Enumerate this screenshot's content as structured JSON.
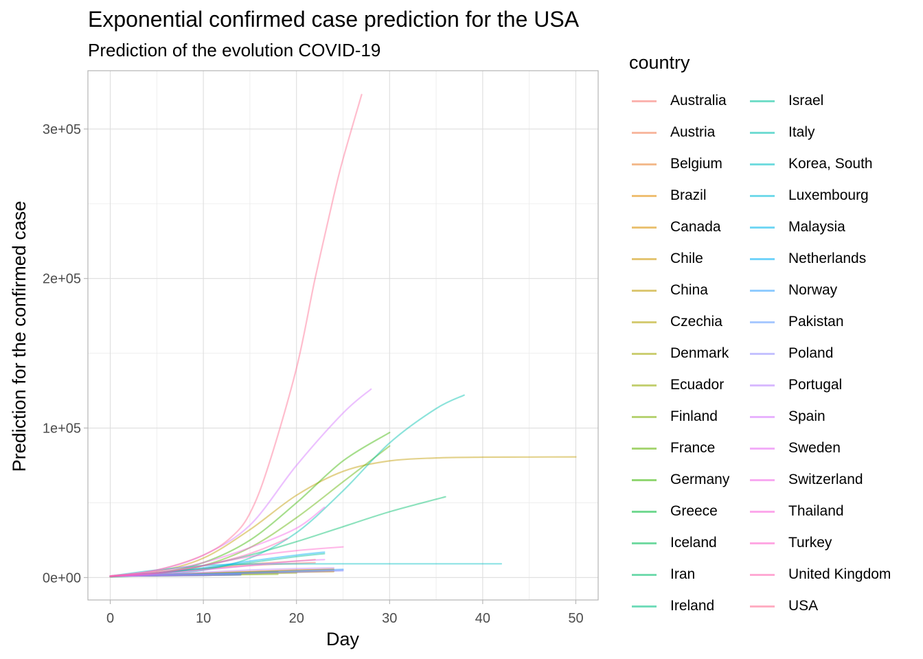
{
  "chart_data": {
    "type": "line",
    "title": "Exponential confirmed case prediction for the USA",
    "subtitle": "Prediction of the evolution COVID-19",
    "xlabel": "Day",
    "ylabel": "Prediction for the confirmed case",
    "xlim": [
      -2.4,
      52.4
    ],
    "ylim": [
      -15000,
      339000
    ],
    "xticks": [
      0,
      10,
      20,
      30,
      40,
      50
    ],
    "xtick_labels": [
      "0",
      "10",
      "20",
      "30",
      "40",
      "50"
    ],
    "yticks": [
      0,
      100000,
      200000,
      300000
    ],
    "ytick_labels": [
      "0e+00",
      "1e+05",
      "2e+05",
      "3e+05"
    ],
    "grid": true,
    "legend_title": "country",
    "legend_position": "right",
    "series": [
      {
        "name": "Australia",
        "color": "#F8766D",
        "x": [
          0,
          5,
          10,
          15,
          20,
          22
        ],
        "y": [
          1000,
          3000,
          5500,
          8000,
          9500,
          10000
        ]
      },
      {
        "name": "Austria",
        "color": "#F27D52",
        "x": [
          0,
          5,
          10,
          15,
          20,
          22
        ],
        "y": [
          1000,
          3000,
          6000,
          9000,
          11000,
          12000
        ]
      },
      {
        "name": "Belgium",
        "color": "#EA8331",
        "x": [
          0,
          5,
          10,
          15,
          20,
          24
        ],
        "y": [
          1000,
          2000,
          3000,
          4000,
          5000,
          5500
        ]
      },
      {
        "name": "Brazil",
        "color": "#E18A00",
        "x": [
          0,
          5,
          10,
          15,
          20,
          24
        ],
        "y": [
          1000,
          1800,
          2800,
          3800,
          4800,
          5500
        ]
      },
      {
        "name": "Canada",
        "color": "#D89000",
        "x": [
          0,
          5,
          10,
          15,
          20,
          24
        ],
        "y": [
          1000,
          1500,
          2200,
          3000,
          3800,
          4200
        ]
      },
      {
        "name": "Chile",
        "color": "#CD9600",
        "x": [
          0,
          5,
          10,
          15,
          20,
          24
        ],
        "y": [
          1000,
          1300,
          2000,
          2800,
          3600,
          4000
        ]
      },
      {
        "name": "China",
        "color": "#C09B00",
        "x": [
          0,
          5,
          10,
          15,
          20,
          25,
          30,
          35,
          40,
          45,
          50
        ],
        "y": [
          500,
          4000,
          13000,
          32000,
          55000,
          71000,
          78000,
          80000,
          80500,
          80600,
          80700
        ]
      },
      {
        "name": "Czechia",
        "color": "#B2A100",
        "x": [
          0,
          5,
          10,
          15,
          18
        ],
        "y": [
          1000,
          1500,
          2300,
          3200,
          3700
        ]
      },
      {
        "name": "Denmark",
        "color": "#A3A500",
        "x": [
          0,
          5,
          10,
          15,
          18
        ],
        "y": [
          1000,
          1600,
          2500,
          3500,
          4000
        ]
      },
      {
        "name": "Ecuador",
        "color": "#93AA00",
        "x": [
          0,
          5,
          10,
          15,
          20
        ],
        "y": [
          1000,
          1300,
          2000,
          2600,
          3100
        ]
      },
      {
        "name": "Finland",
        "color": "#7CAE00",
        "x": [
          0,
          5,
          10,
          15,
          18
        ],
        "y": [
          1000,
          1200,
          1600,
          2000,
          2200
        ]
      },
      {
        "name": "France",
        "color": "#5EB300",
        "x": [
          0,
          5,
          10,
          15,
          20,
          25,
          30
        ],
        "y": [
          500,
          2500,
          8000,
          20000,
          40000,
          64000,
          88000
        ]
      },
      {
        "name": "Germany",
        "color": "#39B600",
        "x": [
          0,
          5,
          10,
          15,
          20,
          25,
          30
        ],
        "y": [
          500,
          3000,
          10000,
          25000,
          50000,
          78000,
          97000
        ]
      },
      {
        "name": "Greece",
        "color": "#00BA38",
        "x": [
          0,
          5,
          10,
          14
        ],
        "y": [
          1000,
          1300,
          1700,
          2000
        ]
      },
      {
        "name": "Iceland",
        "color": "#00BC56",
        "x": [
          0,
          5,
          10,
          14
        ],
        "y": [
          1000,
          1200,
          1500,
          1800
        ]
      },
      {
        "name": "Iran",
        "color": "#00BE6C",
        "x": [
          0,
          5,
          10,
          15,
          20,
          25,
          30,
          36
        ],
        "y": [
          1000,
          3000,
          8000,
          15000,
          24000,
          34000,
          44000,
          54000
        ]
      },
      {
        "name": "Ireland",
        "color": "#00C084",
        "x": [
          0,
          5,
          10,
          14
        ],
        "y": [
          1000,
          1300,
          2000,
          2500
        ]
      },
      {
        "name": "Israel",
        "color": "#00C19A",
        "x": [
          0,
          5,
          10,
          15,
          20,
          23
        ],
        "y": [
          1000,
          3000,
          6000,
          10000,
          14000,
          16000
        ]
      },
      {
        "name": "Italy",
        "color": "#00C0AF",
        "x": [
          0,
          5,
          10,
          15,
          20,
          25,
          30,
          35,
          38
        ],
        "y": [
          500,
          2000,
          5000,
          13000,
          30000,
          58000,
          90000,
          113000,
          122000
        ]
      },
      {
        "name": "Korea, South",
        "color": "#00BFC4",
        "x": [
          0,
          5,
          10,
          15,
          20,
          25,
          30,
          35,
          42
        ],
        "y": [
          1000,
          5000,
          8000,
          9000,
          9100,
          9200,
          9200,
          9200,
          9200
        ]
      },
      {
        "name": "Luxembourg",
        "color": "#00BCD8",
        "x": [
          0,
          5,
          10,
          14
        ],
        "y": [
          1000,
          1200,
          1500,
          1800
        ]
      },
      {
        "name": "Malaysia",
        "color": "#00B6EB",
        "x": [
          0,
          5,
          10,
          14
        ],
        "y": [
          1000,
          1500,
          2000,
          2500
        ]
      },
      {
        "name": "Netherlands",
        "color": "#00B0F6",
        "x": [
          0,
          5,
          10,
          15,
          20,
          23
        ],
        "y": [
          1000,
          3000,
          6500,
          11000,
          15000,
          17000
        ]
      },
      {
        "name": "Norway",
        "color": "#35A2FF",
        "x": [
          0,
          5,
          10,
          15,
          20,
          25
        ],
        "y": [
          1000,
          1800,
          2500,
          3500,
          4500,
          5500
        ]
      },
      {
        "name": "Pakistan",
        "color": "#619CFF",
        "x": [
          0,
          5,
          10,
          15,
          20,
          25
        ],
        "y": [
          1000,
          1500,
          2200,
          3000,
          4000,
          5000
        ]
      },
      {
        "name": "Poland",
        "color": "#9590FF",
        "x": [
          0,
          5,
          10,
          15,
          20,
          25
        ],
        "y": [
          1000,
          1400,
          2000,
          2800,
          3600,
          4500
        ]
      },
      {
        "name": "Portugal",
        "color": "#B983FF",
        "x": [
          0,
          5,
          10,
          15,
          20,
          24
        ],
        "y": [
          1000,
          2000,
          3500,
          5000,
          6000,
          6500
        ]
      },
      {
        "name": "Spain",
        "color": "#D575FE",
        "x": [
          0,
          5,
          10,
          15,
          20,
          25,
          28
        ],
        "y": [
          1000,
          5000,
          15000,
          35000,
          75000,
          110000,
          126000
        ]
      },
      {
        "name": "Sweden",
        "color": "#E76BF3",
        "x": [
          0,
          5,
          10,
          15,
          20,
          23
        ],
        "y": [
          1000,
          2500,
          5000,
          8000,
          11000,
          12000
        ]
      },
      {
        "name": "Switzerland",
        "color": "#F365E6",
        "x": [
          0,
          5,
          10,
          15,
          20,
          23
        ],
        "y": [
          1000,
          4000,
          10000,
          20000,
          33000,
          47000
        ]
      },
      {
        "name": "Thailand",
        "color": "#FA62DB",
        "x": [
          0,
          5,
          10,
          14
        ],
        "y": [
          1000,
          1200,
          1500,
          1800
        ]
      },
      {
        "name": "Turkey",
        "color": "#FF61CC",
        "x": [
          0,
          5,
          10,
          15,
          20,
          25
        ],
        "y": [
          500,
          3000,
          8000,
          14000,
          18000,
          20500
        ]
      },
      {
        "name": "United Kingdom",
        "color": "#FF64B0",
        "x": [
          0,
          5,
          10,
          15,
          19
        ],
        "y": [
          1000,
          3000,
          8000,
          16000,
          26000
        ]
      },
      {
        "name": "USA",
        "color": "#FF6C91",
        "x": [
          0,
          5,
          10,
          13,
          15,
          17,
          20,
          22,
          24,
          25,
          27
        ],
        "y": [
          1000,
          5000,
          15000,
          27000,
          43000,
          75000,
          140000,
          200000,
          255000,
          280000,
          323000
        ]
      }
    ]
  }
}
